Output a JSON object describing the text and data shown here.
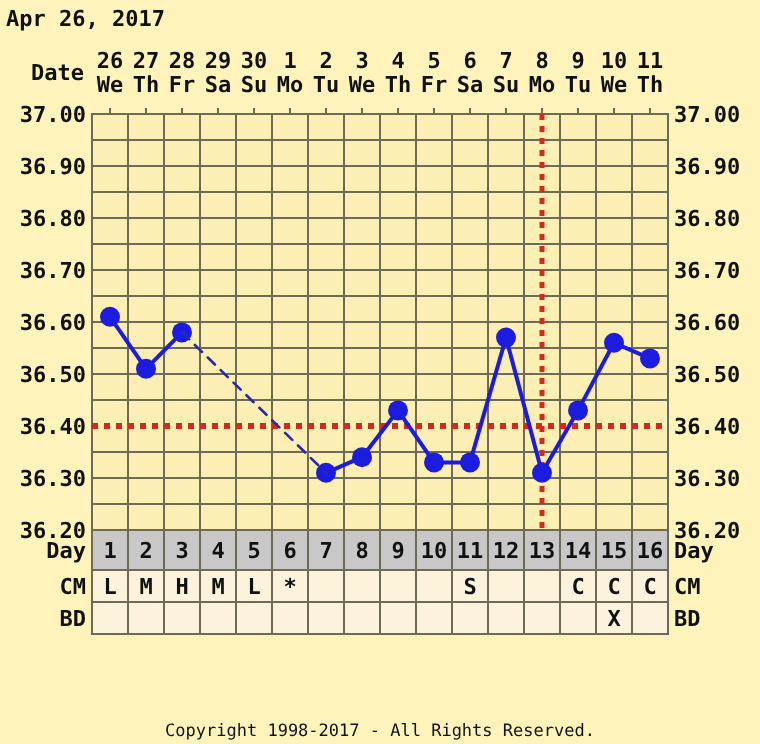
{
  "chart_data": [
    {
      "type": "line",
      "title": "Apr 26, 2017",
      "xlabel": "Day",
      "x2label": "Date",
      "x": [
        1,
        2,
        3,
        4,
        5,
        6,
        7,
        8,
        9,
        10,
        11,
        12,
        13,
        14,
        15,
        16
      ],
      "xlim": [
        0.5,
        16.5
      ],
      "xticks": [
        1,
        2,
        3,
        4,
        5,
        6,
        7,
        8,
        9,
        10,
        11,
        12,
        13,
        14,
        15,
        16
      ],
      "x2lim": [
        "2017-04-25T12:00",
        "2017-05-11T12:00"
      ],
      "x2ticks": [
        {
          "value": "2017-04-26",
          "label": "26 We"
        },
        {
          "value": "2017-04-27",
          "label": "27 Th"
        },
        {
          "value": "2017-04-28",
          "label": "28 Fr"
        },
        {
          "value": "2017-04-29",
          "label": "29 Sa"
        },
        {
          "value": "2017-04-30",
          "label": "30 Su"
        },
        {
          "value": "2017-05-01",
          "label": "1 Mo"
        },
        {
          "value": "2017-05-02",
          "label": "2 Tu"
        },
        {
          "value": "2017-05-03",
          "label": "3 We"
        },
        {
          "value": "2017-05-04",
          "label": "4 Th"
        },
        {
          "value": "2017-05-05",
          "label": "5 Fr"
        },
        {
          "value": "2017-05-06",
          "label": "6 Sa"
        },
        {
          "value": "2017-05-07",
          "label": "7 Su"
        },
        {
          "value": "2017-05-08",
          "label": "8 Mo"
        },
        {
          "value": "2017-05-09",
          "label": "9 Tu"
        },
        {
          "value": "2017-05-10",
          "label": "10 We"
        },
        {
          "value": "2017-05-11",
          "label": "11 Th"
        }
      ],
      "ylim": [
        36.2,
        37.0
      ],
      "yticks": [
        {
          "value": 36.2,
          "label": "36.20"
        },
        {
          "value": 36.25,
          "label": null
        },
        {
          "value": 36.3,
          "label": "36.30"
        },
        {
          "value": 36.35,
          "label": null
        },
        {
          "value": 36.4,
          "label": "36.40"
        },
        {
          "value": 36.45,
          "label": null
        },
        {
          "value": 36.5,
          "label": "36.50"
        },
        {
          "value": 36.55,
          "label": null
        },
        {
          "value": 36.6,
          "label": "36.60"
        },
        {
          "value": 36.65,
          "label": null
        },
        {
          "value": 36.7,
          "label": "36.70"
        },
        {
          "value": 36.75,
          "label": null
        },
        {
          "value": 36.8,
          "label": "36.80"
        },
        {
          "value": 36.85,
          "label": null
        },
        {
          "value": 36.9,
          "label": "36.90"
        },
        {
          "value": 36.95,
          "label": null
        },
        {
          "value": 37.0,
          "label": "37.00"
        }
      ],
      "y2lim": [
        36.2,
        37.0
      ],
      "y2ticks": [
        {
          "value": 36.2,
          "label": "36.20"
        },
        {
          "value": 36.3,
          "label": "36.30"
        },
        {
          "value": 36.4,
          "label": "36.40"
        },
        {
          "value": 36.5,
          "label": "36.50"
        },
        {
          "value": 36.6,
          "label": "36.60"
        },
        {
          "value": 36.7,
          "label": "36.70"
        },
        {
          "value": 36.8,
          "label": "36.80"
        },
        {
          "value": 36.9,
          "label": "36.90"
        },
        {
          "value": 37.0,
          "label": "37.00"
        }
      ],
      "grid": true,
      "marker": "circle",
      "series": [
        {
          "color": "#1c1ce0",
          "values": [
            36.61,
            36.51,
            36.58,
            null,
            null,
            null,
            36.31,
            36.34,
            36.43,
            36.33,
            36.33,
            36.57,
            36.31,
            36.43,
            36.56,
            36.53
          ]
        },
        {
          "color": "#2a2aa8",
          "x": [
            3,
            7
          ],
          "values": [
            36.58,
            36.31
          ],
          "line_style": "dashed",
          "marker": "none"
        }
      ],
      "ref_lines": [
        {
          "axis": "y",
          "value": 36.4,
          "color": "#d42a1e",
          "line_style": "dotted"
        },
        {
          "axis": "x",
          "value": 13,
          "color": "#d42a1e",
          "line_style": "dotted"
        }
      ],
      "annotations": [
        "Copyright 1998-2017 - All Rights Reserved."
      ]
    },
    {
      "type": "heatmap",
      "tick_labels": "y",
      "categories": [
        null,
        null,
        null,
        null,
        null,
        null,
        null,
        null,
        null,
        null,
        null,
        null,
        null,
        null,
        null,
        null
      ],
      "y_categories": [
        "CM",
        "BD"
      ],
      "y2_categories": [
        "CM",
        "BD"
      ],
      "cells": [
        [
          null,
          null,
          null,
          null,
          null,
          null,
          null,
          null,
          null,
          null,
          null,
          null,
          null,
          null,
          null,
          null
        ],
        [
          null,
          null,
          null,
          null,
          null,
          null,
          null,
          null,
          null,
          null,
          null,
          null,
          null,
          null,
          null,
          null
        ]
      ],
      "cell_labels": [
        [
          "L",
          "M",
          "H",
          "M",
          "L",
          "*",
          null,
          null,
          null,
          null,
          "S",
          null,
          null,
          "C",
          "C",
          "C"
        ],
        [
          null,
          null,
          null,
          null,
          null,
          null,
          null,
          null,
          null,
          null,
          null,
          null,
          null,
          null,
          "X",
          null
        ]
      ]
    }
  ]
}
